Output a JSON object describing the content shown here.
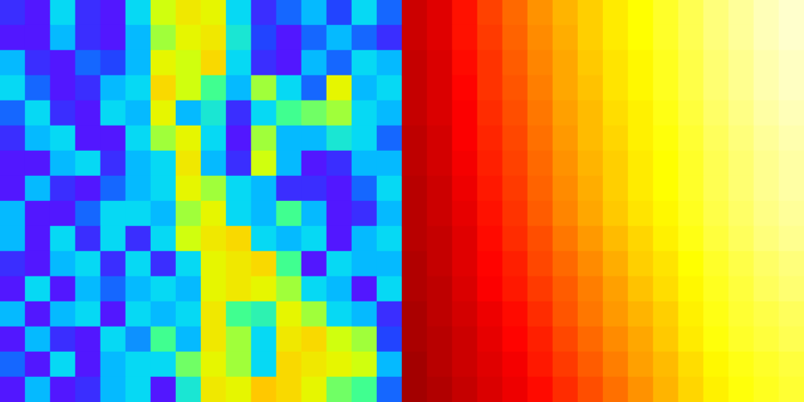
{
  "chart_data": [
    {
      "type": "heatmap",
      "tick_labels": false,
      "zlim": [
        0,
        1
      ],
      "cells": [
        [
          0.1,
          0.05,
          0.35,
          0.1,
          0.05,
          0.35,
          0.65,
          0.75,
          0.7,
          0.35,
          0.1,
          0.2,
          0.3,
          0.15,
          0.35,
          0.2
        ],
        [
          0.05,
          0.05,
          0.3,
          0.1,
          0.05,
          0.3,
          0.6,
          0.7,
          0.75,
          0.4,
          0.15,
          0.05,
          0.2,
          0.3,
          0.2,
          0.1
        ],
        [
          0.3,
          0.1,
          0.05,
          0.2,
          0.15,
          0.3,
          0.7,
          0.65,
          0.8,
          0.35,
          0.1,
          0.05,
          0.3,
          0.2,
          0.35,
          0.3
        ],
        [
          0.35,
          0.2,
          0.05,
          0.1,
          0.3,
          0.35,
          0.8,
          0.65,
          0.5,
          0.3,
          0.6,
          0.35,
          0.2,
          0.7,
          0.3,
          0.35
        ],
        [
          0.2,
          0.35,
          0.1,
          0.05,
          0.35,
          0.3,
          0.7,
          0.3,
          0.4,
          0.1,
          0.35,
          0.5,
          0.55,
          0.6,
          0.35,
          0.3
        ],
        [
          0.1,
          0.3,
          0.35,
          0.05,
          0.05,
          0.35,
          0.6,
          0.7,
          0.35,
          0.05,
          0.6,
          0.3,
          0.3,
          0.4,
          0.35,
          0.2
        ],
        [
          0.05,
          0.05,
          0.3,
          0.35,
          0.1,
          0.3,
          0.35,
          0.75,
          0.3,
          0.1,
          0.65,
          0.3,
          0.05,
          0.1,
          0.3,
          0.3
        ],
        [
          0.05,
          0.3,
          0.1,
          0.05,
          0.2,
          0.3,
          0.35,
          0.7,
          0.6,
          0.35,
          0.3,
          0.1,
          0.1,
          0.05,
          0.2,
          0.35
        ],
        [
          0.3,
          0.05,
          0.05,
          0.2,
          0.35,
          0.35,
          0.3,
          0.6,
          0.7,
          0.35,
          0.3,
          0.5,
          0.3,
          0.05,
          0.1,
          0.3
        ],
        [
          0.3,
          0.05,
          0.35,
          0.1,
          0.35,
          0.1,
          0.35,
          0.65,
          0.75,
          0.8,
          0.35,
          0.3,
          0.35,
          0.05,
          0.3,
          0.35
        ],
        [
          0.1,
          0.05,
          0.3,
          0.35,
          0.1,
          0.35,
          0.1,
          0.35,
          0.7,
          0.75,
          0.8,
          0.5,
          0.05,
          0.35,
          0.3,
          0.3
        ],
        [
          0.05,
          0.35,
          0.05,
          0.3,
          0.2,
          0.3,
          0.35,
          0.3,
          0.7,
          0.75,
          0.7,
          0.6,
          0.35,
          0.3,
          0.05,
          0.35
        ],
        [
          0.3,
          0.05,
          0.3,
          0.35,
          0.05,
          0.35,
          0.3,
          0.35,
          0.75,
          0.5,
          0.45,
          0.7,
          0.6,
          0.35,
          0.3,
          0.1
        ],
        [
          0.05,
          0.3,
          0.1,
          0.05,
          0.35,
          0.25,
          0.5,
          0.3,
          0.75,
          0.6,
          0.35,
          0.75,
          0.8,
          0.65,
          0.6,
          0.15
        ],
        [
          0.2,
          0.05,
          0.35,
          0.05,
          0.3,
          0.35,
          0.35,
          0.55,
          0.7,
          0.6,
          0.35,
          0.8,
          0.75,
          0.7,
          0.65,
          0.3
        ],
        [
          0.05,
          0.3,
          0.05,
          0.1,
          0.3,
          0.35,
          0.05,
          0.4,
          0.75,
          0.7,
          0.85,
          0.8,
          0.7,
          0.55,
          0.5,
          0.2
        ]
      ]
    },
    {
      "type": "heatmap",
      "tick_labels": false,
      "zlim": [
        0,
        1
      ],
      "cells": [
        [
          0.3,
          0.33,
          0.4,
          0.47,
          0.53,
          0.59,
          0.64,
          0.68,
          0.72,
          0.75,
          0.79,
          0.83,
          0.87,
          0.9,
          0.93,
          0.95
        ],
        [
          0.3,
          0.33,
          0.4,
          0.46,
          0.52,
          0.58,
          0.63,
          0.68,
          0.72,
          0.75,
          0.79,
          0.83,
          0.87,
          0.9,
          0.93,
          0.95
        ],
        [
          0.29,
          0.32,
          0.39,
          0.45,
          0.51,
          0.57,
          0.62,
          0.67,
          0.71,
          0.74,
          0.78,
          0.82,
          0.86,
          0.89,
          0.92,
          0.94
        ],
        [
          0.29,
          0.32,
          0.38,
          0.45,
          0.5,
          0.56,
          0.62,
          0.66,
          0.71,
          0.74,
          0.78,
          0.82,
          0.86,
          0.89,
          0.92,
          0.94
        ],
        [
          0.29,
          0.32,
          0.37,
          0.44,
          0.49,
          0.55,
          0.61,
          0.65,
          0.7,
          0.73,
          0.77,
          0.81,
          0.85,
          0.88,
          0.91,
          0.93
        ],
        [
          0.28,
          0.31,
          0.37,
          0.43,
          0.48,
          0.54,
          0.6,
          0.65,
          0.69,
          0.73,
          0.76,
          0.8,
          0.84,
          0.87,
          0.9,
          0.92
        ],
        [
          0.28,
          0.31,
          0.36,
          0.42,
          0.47,
          0.53,
          0.59,
          0.64,
          0.68,
          0.72,
          0.75,
          0.79,
          0.83,
          0.86,
          0.89,
          0.91
        ],
        [
          0.27,
          0.3,
          0.35,
          0.41,
          0.46,
          0.52,
          0.58,
          0.63,
          0.68,
          0.72,
          0.75,
          0.79,
          0.83,
          0.86,
          0.89,
          0.91
        ],
        [
          0.27,
          0.3,
          0.34,
          0.4,
          0.45,
          0.51,
          0.57,
          0.62,
          0.67,
          0.71,
          0.74,
          0.78,
          0.82,
          0.85,
          0.88,
          0.9
        ],
        [
          0.27,
          0.29,
          0.33,
          0.39,
          0.44,
          0.49,
          0.55,
          0.6,
          0.65,
          0.69,
          0.73,
          0.77,
          0.81,
          0.84,
          0.87,
          0.89
        ],
        [
          0.26,
          0.29,
          0.33,
          0.38,
          0.42,
          0.48,
          0.53,
          0.58,
          0.63,
          0.68,
          0.71,
          0.75,
          0.79,
          0.82,
          0.85,
          0.87
        ],
        [
          0.26,
          0.28,
          0.32,
          0.37,
          0.41,
          0.46,
          0.51,
          0.56,
          0.61,
          0.66,
          0.7,
          0.74,
          0.78,
          0.81,
          0.84,
          0.86
        ],
        [
          0.25,
          0.28,
          0.31,
          0.35,
          0.39,
          0.44,
          0.5,
          0.55,
          0.6,
          0.64,
          0.68,
          0.73,
          0.77,
          0.8,
          0.82,
          0.84
        ],
        [
          0.25,
          0.27,
          0.3,
          0.34,
          0.38,
          0.42,
          0.48,
          0.53,
          0.58,
          0.62,
          0.67,
          0.72,
          0.76,
          0.79,
          0.81,
          0.83
        ],
        [
          0.24,
          0.27,
          0.3,
          0.33,
          0.36,
          0.41,
          0.46,
          0.51,
          0.56,
          0.61,
          0.65,
          0.7,
          0.74,
          0.77,
          0.79,
          0.81
        ],
        [
          0.24,
          0.26,
          0.29,
          0.32,
          0.35,
          0.39,
          0.44,
          0.49,
          0.54,
          0.59,
          0.64,
          0.69,
          0.73,
          0.76,
          0.78,
          0.8
        ]
      ]
    }
  ]
}
